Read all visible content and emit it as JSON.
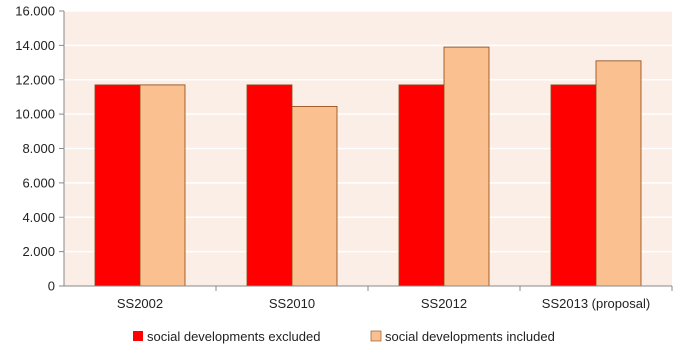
{
  "chart_data": {
    "type": "bar",
    "categories": [
      "SS2002",
      "SS2010",
      "SS2012",
      "SS2013 (proposal)"
    ],
    "series": [
      {
        "name": "social developments excluded",
        "values": [
          11700,
          11700,
          11700,
          11700
        ],
        "color": "#ff0000"
      },
      {
        "name": "social developments included",
        "values": [
          11700,
          10450,
          13900,
          13100
        ],
        "color": "#fac090"
      }
    ],
    "ylim": [
      0,
      16000
    ],
    "yticks": [
      0,
      2000,
      4000,
      6000,
      8000,
      10000,
      12000,
      14000,
      16000
    ],
    "ytick_labels": [
      "0",
      "2.000",
      "4.000",
      "6.000",
      "8.000",
      "10.000",
      "12.000",
      "14.000",
      "16.000"
    ],
    "grid": true,
    "legend_position": "bottom",
    "plot_background": "#fbeee6",
    "grid_color": "#ffffff",
    "bar_border_color": "#8b4513"
  }
}
